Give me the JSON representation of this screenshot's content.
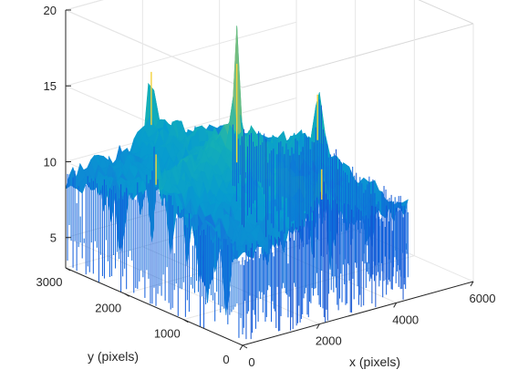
{
  "chart_data": {
    "type": "surface3d",
    "title": "",
    "xlabel": "x (pixels)",
    "ylabel": "y (pixels)",
    "zlabel": "",
    "xlim": [
      0,
      6000
    ],
    "ylim": [
      0,
      3000
    ],
    "zlim": [
      3,
      20
    ],
    "xticks": [
      0,
      2000,
      4000,
      6000
    ],
    "yticks": [
      0,
      1000,
      2000,
      3000
    ],
    "zticks": [
      5,
      10,
      15,
      20
    ],
    "grid": true,
    "box": true,
    "colormap": "parula",
    "data_extent": {
      "x": [
        0,
        4300
      ],
      "y": [
        0,
        3000
      ]
    },
    "surface_description": "noisy log-magnitude spectrum; baseline ~9-12, sharp central peak ~17.5 near x=2150,y=1500; ridges along center lines; minor spikes ~14 near edge midpoints",
    "peaks": [
      {
        "x": 2150,
        "y": 1500,
        "z": 17.5
      },
      {
        "x": 2150,
        "y": 2950,
        "z": 14.5
      },
      {
        "x": 4250,
        "y": 1500,
        "z": 14.0
      },
      {
        "x": 50,
        "y": 1500,
        "z": 13.0
      },
      {
        "x": 2150,
        "y": 60,
        "z": 13.0
      }
    ],
    "colors": {
      "low": "#0072bd",
      "mid": "#25b7a4",
      "high": "#f0c93a"
    }
  }
}
